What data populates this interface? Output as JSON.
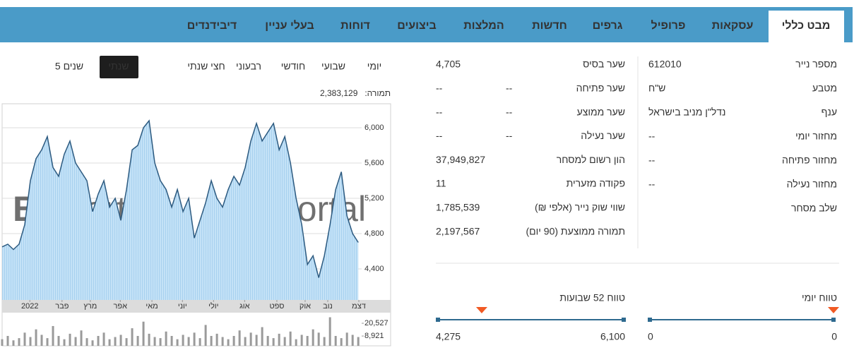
{
  "nav": {
    "tabs": [
      "מבט כללי",
      "עסקאות",
      "פרופיל",
      "גרפים",
      "חדשות",
      "המלצות",
      "ביצועים",
      "דוחות",
      "בעלי עניין",
      "דיבידנדים"
    ]
  },
  "security_details": [
    {
      "label": "מספר נייר",
      "value": "612010"
    },
    {
      "label": "מטבע",
      "value": "ש\"ח"
    },
    {
      "label": "ענף",
      "value": "נדל\"ן מניב בישראל"
    },
    {
      "label": "מחזור יומי",
      "value": "--"
    },
    {
      "label": "מחזור פתיחה",
      "value": "--"
    },
    {
      "label": "מחזור נעילה",
      "value": "--"
    },
    {
      "label": "שלב מסחר"
    }
  ],
  "price_details": [
    {
      "label": "שער בסיס",
      "value": "4,705"
    },
    {
      "label": "שער פתיחה",
      "value": "--",
      "change": "--"
    },
    {
      "label": "שער ממוצע",
      "value": "--",
      "change": "--"
    },
    {
      "label": "שער נעילה",
      "value": "--",
      "change": "--"
    },
    {
      "label": "הון רשום למסחר",
      "value": "37,949,827"
    },
    {
      "label": "פקודה מזערית",
      "value": "11"
    },
    {
      "label": "שווי שוק נייר (אלפי ₪)",
      "value": "1,785,539"
    },
    {
      "label": "תמורה ממוצעת (90 יום)",
      "value": "2,197,567"
    }
  ],
  "ranges": [
    {
      "title": "טווח יומי",
      "low": 0,
      "high": 0,
      "current": 0
    },
    {
      "title": "טווח 52 שבועות",
      "low": {
        "value": 4275,
        "label": "4,275"
      },
      "high": {
        "value": 6100,
        "label": "6,100"
      },
      "current": 4705
    }
  ],
  "periods": [
    "יומי",
    "שבועי",
    "חודשי",
    "רבעוני",
    "חצי שנתי",
    "שנתי",
    "5 שנים"
  ],
  "turnover": {
    "label": "תמורה:",
    "value": "2,383,129"
  },
  "watermark": [
    "Biz",
    "portal"
  ],
  "chart_data": [
    {
      "type": "line",
      "color": "#2c5a80",
      "fill": "#b9dcf4",
      "grid": true,
      "x": [
        0,
        1,
        2,
        3,
        4,
        5,
        6,
        7,
        8,
        9,
        10,
        11,
        12,
        13,
        14,
        15,
        16,
        17,
        18,
        19,
        20,
        21,
        22,
        23,
        24,
        25,
        26,
        27,
        28,
        29,
        30,
        31,
        32,
        33,
        34,
        35,
        36,
        37,
        38,
        39,
        40,
        41,
        42,
        43,
        44,
        45,
        46,
        47,
        48,
        49,
        50,
        51,
        52,
        53,
        54,
        55,
        56,
        57,
        58,
        59,
        60,
        61,
        62,
        63
      ],
      "values": [
        4650,
        4680,
        4620,
        4680,
        4900,
        5400,
        5650,
        5750,
        5900,
        5550,
        5450,
        5700,
        5850,
        5600,
        5500,
        5400,
        5050,
        5250,
        5400,
        5100,
        5200,
        4950,
        5300,
        5750,
        5800,
        6000,
        6080,
        5600,
        5400,
        5300,
        5100,
        5300,
        5050,
        5200,
        4750,
        4950,
        5150,
        5400,
        5200,
        5100,
        5300,
        5450,
        5350,
        5550,
        5850,
        6050,
        5850,
        5950,
        6050,
        5750,
        5900,
        5600,
        5200,
        4900,
        4450,
        4550,
        4300,
        4550,
        4900,
        5300,
        5500,
        5000,
        4800,
        4700
      ],
      "xlim": [
        0,
        63.6
      ],
      "xticks": [
        {
          "value": 4.9,
          "label": "2022"
        },
        {
          "value": 10.6,
          "label": "פבר"
        },
        {
          "value": 15.6,
          "label": "מרץ"
        },
        {
          "value": 20.9,
          "label": "אפר"
        },
        {
          "value": 26.5,
          "label": "מאי"
        },
        {
          "value": 31.9,
          "label": "יוני"
        },
        {
          "value": 37.4,
          "label": "יולי"
        },
        {
          "value": 42.9,
          "label": "אוג"
        },
        {
          "value": 48.6,
          "label": "ספט"
        },
        {
          "value": 53.6,
          "label": "אוק"
        },
        {
          "value": 57.6,
          "label": "נוב"
        },
        {
          "value": 63.1,
          "label": "דצמ"
        }
      ],
      "ylim": [
        4048,
        6272
      ],
      "yticks": [
        {
          "value": 4400,
          "label": "4,400"
        },
        {
          "value": 4800,
          "label": "4,800"
        },
        {
          "value": 5200,
          "label": "5,200"
        },
        {
          "value": 5600,
          "label": "5,600"
        },
        {
          "value": 6000,
          "label": "6,000"
        }
      ]
    },
    {
      "type": "bar",
      "color": "#9a9a9a",
      "x": [
        0,
        1,
        2,
        3,
        4,
        5,
        6,
        7,
        8,
        9,
        10,
        11,
        12,
        13,
        14,
        15,
        16,
        17,
        18,
        19,
        20,
        21,
        22,
        23,
        24,
        25,
        26,
        27,
        28,
        29,
        30,
        31,
        32,
        33,
        34,
        35,
        36,
        37,
        38,
        39,
        40,
        41,
        42,
        43,
        44,
        45,
        46,
        47,
        48,
        49,
        50,
        51,
        52,
        53,
        54,
        55,
        56,
        57,
        58,
        59,
        60,
        61,
        62,
        63
      ],
      "values": [
        6000,
        9000,
        5000,
        7000,
        12000,
        8000,
        15000,
        10000,
        7000,
        18000,
        9000,
        6000,
        11000,
        8000,
        14000,
        7000,
        5000,
        9000,
        12000,
        6000,
        8000,
        10000,
        7000,
        16000,
        9000,
        22000,
        11000,
        8000,
        7000,
        13000,
        9000,
        6000,
        10000,
        8000,
        12000,
        7000,
        19000,
        9000,
        11000,
        8000,
        6000,
        9000,
        14000,
        8000,
        12000,
        10000,
        17000,
        9000,
        7000,
        11000,
        8000,
        13000,
        6000,
        10000,
        9000,
        15000,
        12000,
        8000,
        26000,
        9000,
        7000,
        12000,
        10000,
        8000
      ],
      "xlim": [
        0,
        63.6
      ],
      "ylim": [
        0,
        28900
      ],
      "yticks": [
        {
          "value": 8921,
          "label": "8,921"
        },
        {
          "value": 20527,
          "label": "20,527"
        }
      ]
    }
  ]
}
